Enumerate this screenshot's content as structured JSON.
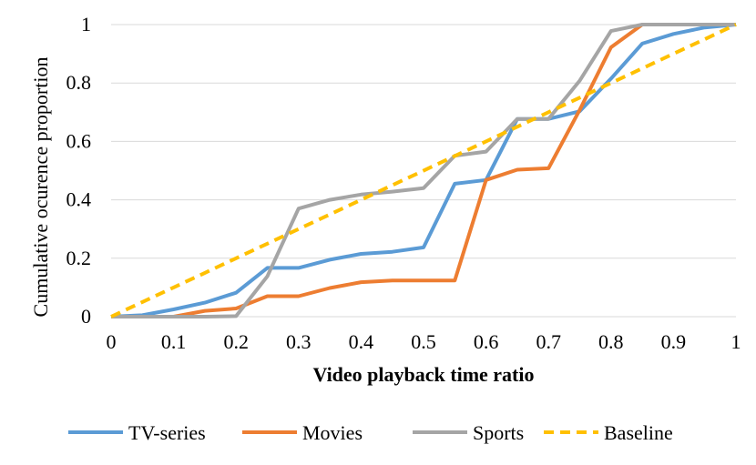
{
  "chart_data": {
    "type": "line",
    "title": "",
    "xlabel": "Video playback time ratio",
    "ylabel": "Cumulative ocurence proportion",
    "xlim": [
      0,
      1
    ],
    "ylim": [
      0,
      1
    ],
    "x_ticks": [
      "0",
      "0.1",
      "0.2",
      "0.3",
      "0.4",
      "0.5",
      "0.6",
      "0.7",
      "0.8",
      "0.9",
      "1"
    ],
    "y_ticks": [
      "0",
      "0.2",
      "0.4",
      "0.6",
      "0.8",
      "1"
    ],
    "grid": "horizontal",
    "legend_position": "bottom",
    "x": [
      0,
      0.05,
      0.1,
      0.15,
      0.2,
      0.25,
      0.3,
      0.35,
      0.4,
      0.45,
      0.5,
      0.55,
      0.6,
      0.65,
      0.7,
      0.75,
      0.8,
      0.85,
      0.9,
      0.95,
      1
    ],
    "series": [
      {
        "name": "TV-series",
        "color": "#5B9BD5",
        "style": "solid",
        "values": [
          0,
          0.005,
          0.025,
          0.048,
          0.082,
          0.167,
          0.167,
          0.195,
          0.215,
          0.222,
          0.237,
          0.455,
          0.468,
          0.677,
          0.677,
          0.703,
          0.815,
          0.935,
          0.968,
          0.99,
          1
        ]
      },
      {
        "name": "Movies",
        "color": "#ED7D31",
        "style": "solid",
        "values": [
          0,
          0,
          0,
          0.02,
          0.028,
          0.07,
          0.07,
          0.098,
          0.118,
          0.124,
          0.124,
          0.124,
          0.468,
          0.503,
          0.508,
          0.708,
          0.922,
          1,
          1,
          1,
          1
        ]
      },
      {
        "name": "Sports",
        "color": "#A5A5A5",
        "style": "solid",
        "values": [
          0,
          0,
          0,
          0,
          0.002,
          0.138,
          0.37,
          0.4,
          0.418,
          0.428,
          0.44,
          0.551,
          0.565,
          0.677,
          0.677,
          0.808,
          0.978,
          1,
          1,
          1,
          1
        ]
      },
      {
        "name": "Baseline",
        "color": "#FFC000",
        "style": "dashed",
        "values": [
          0,
          0.05,
          0.1,
          0.15,
          0.2,
          0.25,
          0.3,
          0.35,
          0.4,
          0.45,
          0.5,
          0.55,
          0.6,
          0.65,
          0.7,
          0.75,
          0.8,
          0.85,
          0.9,
          0.95,
          1
        ]
      }
    ]
  }
}
